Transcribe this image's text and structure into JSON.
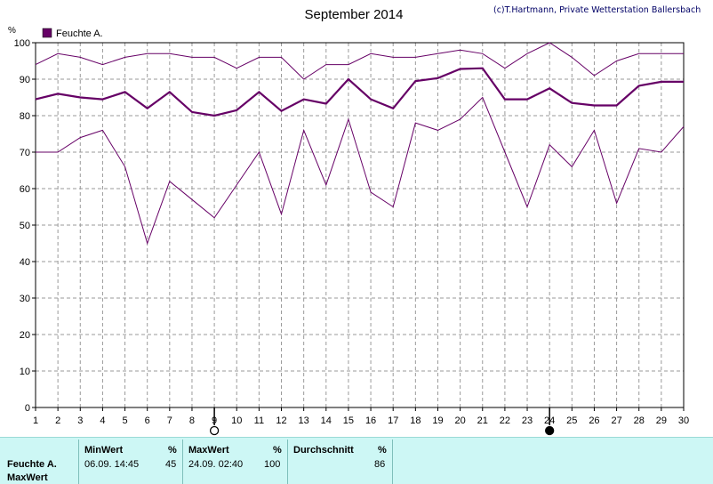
{
  "chart_data": {
    "type": "line",
    "title": "September 2014",
    "copyright": "(c)T.Hartmann, Private Wetterstation Ballersbach",
    "ylabel": "%",
    "ylim": [
      0,
      100
    ],
    "yticks": [
      0,
      10,
      20,
      30,
      40,
      50,
      60,
      70,
      80,
      90,
      100
    ],
    "xlim": [
      1,
      30
    ],
    "x": [
      1,
      2,
      3,
      4,
      5,
      6,
      7,
      8,
      9,
      10,
      11,
      12,
      13,
      14,
      15,
      16,
      17,
      18,
      19,
      20,
      21,
      22,
      23,
      24,
      25,
      26,
      27,
      28,
      29,
      30
    ],
    "legend": {
      "label": "Feuchte A.",
      "position": "top-left",
      "color": "#660066"
    },
    "grid": true,
    "series": [
      {
        "role": "max",
        "values": [
          94,
          97,
          96,
          94,
          96,
          97,
          97,
          96,
          96,
          93,
          96,
          96,
          90,
          94,
          94,
          97,
          96,
          96,
          97,
          98,
          97,
          93,
          97,
          100,
          96,
          91,
          95,
          97,
          97,
          97
        ]
      },
      {
        "role": "mean",
        "values": [
          84.5,
          86,
          85,
          84.5,
          86.5,
          82,
          86.5,
          81,
          80,
          81.5,
          86.5,
          81.3,
          84.5,
          83.3,
          90,
          84.5,
          82,
          89.5,
          90.3,
          92.8,
          93,
          84.5,
          84.5,
          87.5,
          83.5,
          82.8,
          82.8,
          88.2,
          89.3,
          89.3
        ]
      },
      {
        "role": "min",
        "values": [
          70,
          70,
          74,
          76,
          66,
          45,
          62,
          57,
          52,
          61,
          70,
          53,
          76,
          61,
          79,
          59,
          55,
          78,
          76,
          79,
          85,
          70,
          55,
          72,
          66,
          76,
          56,
          71,
          70,
          77
        ]
      }
    ],
    "moon_phases": [
      {
        "day": 9,
        "phase": "full"
      },
      {
        "day": 24,
        "phase": "new"
      }
    ]
  },
  "colors": {
    "line": "#660066",
    "grid": "#9a9a9a",
    "panel": "#cdf7f5"
  },
  "stats": {
    "row_label": "Feuchte A.",
    "row_label2": "MaxWert",
    "min_header": "MinWert",
    "min_unit": "%",
    "min_time": "06.09.  14:45",
    "min_value": "45",
    "max_header": "MaxWert",
    "max_unit": "%",
    "max_time": "24.09.  02:40",
    "max_value": "100",
    "avg_header": "Durchschnitt",
    "avg_unit": "%",
    "avg_value": "86"
  }
}
